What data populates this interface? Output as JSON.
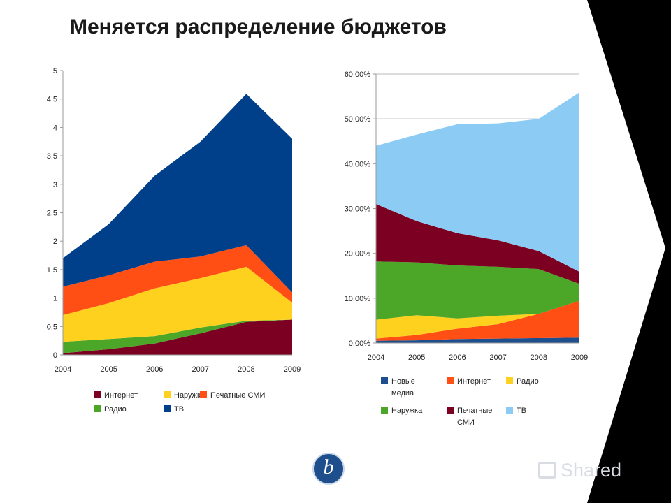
{
  "slide": {
    "title": "Меняется распределение бюджетов",
    "logo_letter": "b",
    "watermark": "Shared"
  },
  "colors": {
    "tv": "#003f8a",
    "print": "#ff4f14",
    "outdoor": "#ffd11f",
    "radio": "#4ca628",
    "internet": "#7b0022",
    "new_media": "#1d4f8f",
    "tv_share": "#8ccbf4",
    "dark_band": "#000000"
  },
  "chart_data": [
    {
      "type": "area",
      "stacked": true,
      "x": [
        "2004",
        "2005",
        "2006",
        "2007",
        "2008",
        "2009"
      ],
      "series": [
        {
          "name": "Интернет",
          "values": [
            0.03,
            0.1,
            0.2,
            0.38,
            0.58,
            0.62
          ],
          "color": "#7b0022"
        },
        {
          "name": "Радио",
          "values": [
            0.2,
            0.18,
            0.13,
            0.1,
            0.02,
            0.0
          ],
          "color": "#4ca628"
        },
        {
          "name": "Наружка",
          "values": [
            0.47,
            0.63,
            0.84,
            0.87,
            0.95,
            0.3
          ],
          "color": "#ffd11f"
        },
        {
          "name": "Печатные СМИ",
          "values": [
            0.5,
            0.49,
            0.47,
            0.38,
            0.38,
            0.18
          ],
          "color": "#ff4f14"
        },
        {
          "name": "ТВ",
          "values": [
            0.5,
            0.9,
            1.51,
            2.02,
            2.66,
            2.7
          ],
          "color": "#003f8a"
        }
      ],
      "ylim": [
        0,
        5
      ],
      "yticks": [
        "0",
        "0,5",
        "1",
        "1,5",
        "2",
        "2,5",
        "3",
        "3,5",
        "4",
        "4,5",
        "5"
      ],
      "grid": false,
      "legend": "bottom"
    },
    {
      "type": "area",
      "stacked": true,
      "x": [
        "2004",
        "2005",
        "2006",
        "2007",
        "2008",
        "2009"
      ],
      "series": [
        {
          "name": "Новые медиа",
          "values": [
            0.5,
            0.6,
            0.9,
            1.0,
            1.1,
            1.2
          ],
          "color": "#1d4f8f"
        },
        {
          "name": "Интернет",
          "values": [
            0.5,
            1.2,
            2.3,
            3.2,
            5.4,
            8.2
          ],
          "color": "#ff4f14"
        },
        {
          "name": "Радио",
          "values": [
            4.2,
            4.4,
            2.3,
            1.9,
            0.0,
            0.0
          ],
          "color": "#ffd11f"
        },
        {
          "name": "Наружка",
          "values": [
            13.0,
            11.8,
            11.8,
            10.9,
            10.0,
            3.8
          ],
          "color": "#4ca628"
        },
        {
          "name": "Печатные СМИ",
          "values": [
            12.8,
            9.2,
            7.2,
            5.9,
            4.0,
            2.7
          ],
          "color": "#7b0022"
        },
        {
          "name": "ТВ",
          "values": [
            13.0,
            19.3,
            24.3,
            26.1,
            29.5,
            40.0
          ],
          "color": "#8ccbf4"
        }
      ],
      "ylim": [
        0,
        60
      ],
      "yticks": [
        "0,00%",
        "10,00%",
        "20,00%",
        "30,00%",
        "40,00%",
        "50,00%",
        "60,00%"
      ],
      "grid": true,
      "legend": "bottom"
    }
  ]
}
